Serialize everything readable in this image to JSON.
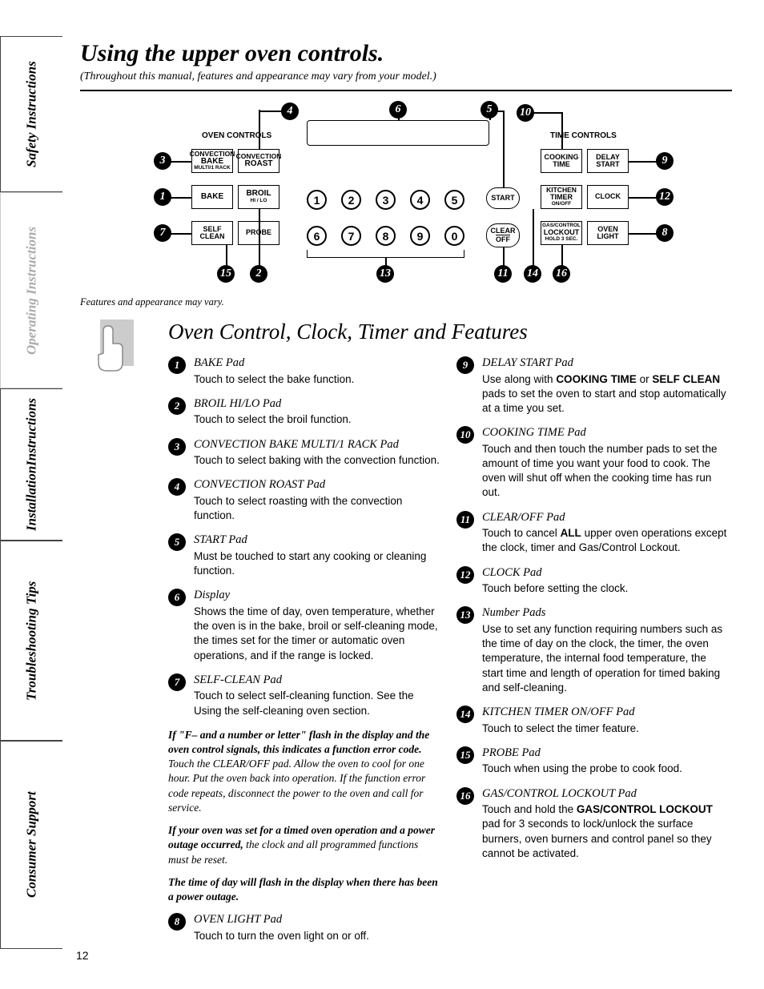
{
  "page_number": "12",
  "title": "Using the upper oven controls.",
  "subtitle": "(Throughout this manual, features and appearance may vary from your model.)",
  "diagram_caption": "Features and appearance may vary.",
  "section_title": "Oven Control, Clock, Timer and Features",
  "sidebar": {
    "tabs": [
      {
        "label": "Safety Instructions",
        "active": true
      },
      {
        "label": "Operating Instructions",
        "active": false
      },
      {
        "label": "Installation Instructions",
        "active": true,
        "twoLine": true,
        "line1": "Installation",
        "line2": "Instructions"
      },
      {
        "label": "Troubleshooting Tips",
        "active": true
      },
      {
        "label": "Consumer Support",
        "active": true
      }
    ]
  },
  "panel": {
    "header_left": "OVEN CONTROLS",
    "header_right": "TIME CONTROLS",
    "buttons": {
      "conv_bake": {
        "t": "CONVECTION",
        "m": "BAKE",
        "b": "MULTI/1 RACK"
      },
      "conv_roast": {
        "t": "CONVECTION",
        "m": "ROAST"
      },
      "bake": "BAKE",
      "broil": {
        "t": "BROIL",
        "b": "HI / LO"
      },
      "self_clean": {
        "t": "SELF",
        "b": "CLEAN"
      },
      "probe": "PROBE",
      "start": "START",
      "clear": {
        "t": "CLEAR",
        "b": "OFF"
      },
      "cook_time": {
        "t": "COOKING",
        "b": "TIME"
      },
      "delay": {
        "t": "DELAY",
        "b": "START"
      },
      "kt": {
        "t": "KITCHEN",
        "m": "TIMER",
        "b": "ON/OFF"
      },
      "clock": "CLOCK",
      "lockout": {
        "t": "GAS/CONTROL",
        "m": "LOCKOUT",
        "b": "HOLD 3 SEC."
      },
      "light": {
        "t": "OVEN",
        "b": "LIGHT"
      }
    },
    "numpad": [
      "1",
      "2",
      "3",
      "4",
      "5",
      "6",
      "7",
      "8",
      "9",
      "0"
    ]
  },
  "left_items": [
    {
      "n": "1",
      "h": "BAKE Pad",
      "t": "Touch to select the bake function."
    },
    {
      "n": "2",
      "h": "BROIL HI/LO Pad",
      "t": "Touch to select the broil function."
    },
    {
      "n": "3",
      "h": "CONVECTION BAKE MULTI/1 RACK Pad",
      "t": "Touch to select baking with the convection function."
    },
    {
      "n": "4",
      "h": "CONVECTION ROAST Pad",
      "t": "Touch to select roasting with the convection function."
    },
    {
      "n": "5",
      "h": "START Pad",
      "t": "Must be touched to start any cooking or cleaning function."
    },
    {
      "n": "6",
      "h": "Display",
      "t": "Shows the time of day, oven temperature, whether the oven is in the bake, broil or self-cleaning mode, the times set for the timer or automatic oven operations, and if the range is locked."
    },
    {
      "n": "7",
      "h": "SELF-CLEAN Pad",
      "t": "Touch to select self-cleaning function. See the Using the self-cleaning oven section."
    }
  ],
  "notes": [
    {
      "bold": "If \"F– and a number or letter\" flash in the display and the oven control signals, this indicates a function error code.",
      "rest": " Touch the CLEAR/OFF pad. Allow the oven to cool for one hour. Put the oven back into operation. If the function error code repeats, disconnect the power to the oven and call for service."
    },
    {
      "bold": "If your oven was set for a timed oven operation and a power outage occurred,",
      "rest": " the clock and all programmed functions must be reset."
    },
    {
      "bold": "The time of day will flash in the display when there has been a power outage.",
      "rest": ""
    }
  ],
  "left_items_after": [
    {
      "n": "8",
      "h": "OVEN LIGHT Pad",
      "t": "Touch to turn the oven light on or off."
    }
  ],
  "right_items": [
    {
      "n": "9",
      "h": "DELAY START Pad",
      "t": "Use along with <b>COOKING TIME</b> or <b>SELF CLEAN</b> pads to set the oven to start and stop automatically at a time you set."
    },
    {
      "n": "10",
      "h": "COOKING TIME Pad",
      "t": "Touch and then touch the number pads to set the amount of time you want your food to cook. The oven will shut off when the cooking time has run out."
    },
    {
      "n": "11",
      "h": "CLEAR/OFF Pad",
      "t": "Touch to cancel <b>ALL</b> upper oven operations except the clock, timer and Gas/Control Lockout."
    },
    {
      "n": "12",
      "h": "CLOCK Pad",
      "t": "Touch before setting the clock."
    },
    {
      "n": "13",
      "h": "Number Pads",
      "t": "Use to set any function requiring numbers such as the time of day on the clock, the timer, the oven temperature, the internal food temperature, the start time and length of operation for timed baking and self-cleaning."
    },
    {
      "n": "14",
      "h": "KITCHEN TIMER ON/OFF Pad",
      "t": "Touch to select the timer feature."
    },
    {
      "n": "15",
      "h": "PROBE Pad",
      "t": "Touch when using the probe to cook food."
    },
    {
      "n": "16",
      "h": "GAS/CONTROL LOCKOUT Pad",
      "t": "Touch and hold the <b>GAS/CONTROL LOCKOUT</b> pad for 3 seconds to lock/unlock the surface burners, oven burners and control panel so they cannot be activated."
    }
  ]
}
